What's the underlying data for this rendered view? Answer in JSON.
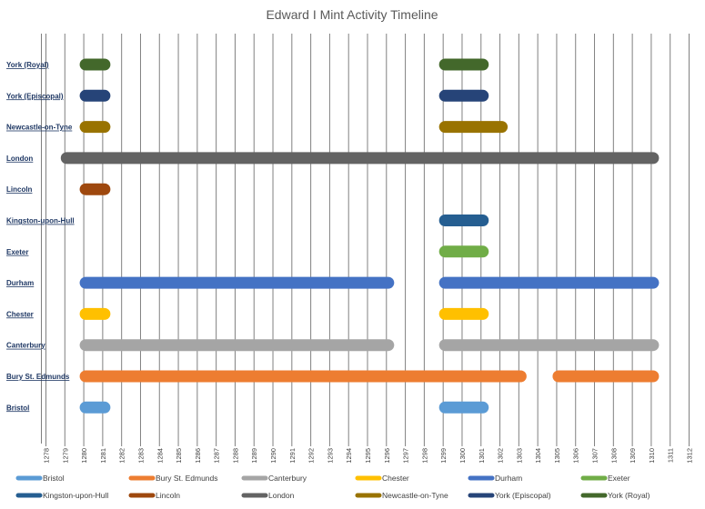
{
  "chart_data": {
    "type": "bar",
    "subtype": "timeline-gantt",
    "title": "Edward I Mint Activity Timeline",
    "xlabel": "",
    "ylabel": "",
    "xlim": [
      1278,
      1312
    ],
    "x_ticks": [
      "1278",
      "1279",
      "1280",
      "1281",
      "1282",
      "1283",
      "1284",
      "1285",
      "1286",
      "1287",
      "1288",
      "1289",
      "1290",
      "1291",
      "1292",
      "1293",
      "1294",
      "1295",
      "1296",
      "1297",
      "1298",
      "1299",
      "1300",
      "1301",
      "1302",
      "1303",
      "1304",
      "1305",
      "1306",
      "1307",
      "1308",
      "1309",
      "1310",
      "1311",
      "1312"
    ],
    "grid": "vertical",
    "legend_position": "bottom",
    "categories": [
      "York (Royal)",
      "York (Episcopal)",
      "Newcastle-on-Tyne",
      "London",
      "Lincoln",
      "Kingston-upon-Hull",
      "Exeter",
      "Durham",
      "Chester",
      "Canterbury",
      "Bury St. Edmunds",
      "Bristol"
    ],
    "series": [
      {
        "name": "Bristol",
        "color": "#5b9bd5",
        "row": 11,
        "intervals": [
          [
            1280,
            1281
          ],
          [
            1299,
            1301
          ]
        ]
      },
      {
        "name": "Bury St. Edmunds",
        "color": "#ed7d31",
        "row": 10,
        "intervals": [
          [
            1280,
            1303
          ],
          [
            1305,
            1310
          ]
        ]
      },
      {
        "name": "Canterbury",
        "color": "#a5a5a5",
        "row": 9,
        "intervals": [
          [
            1280,
            1296
          ],
          [
            1299,
            1310
          ]
        ]
      },
      {
        "name": "Chester",
        "color": "#ffc000",
        "row": 8,
        "intervals": [
          [
            1280,
            1281
          ],
          [
            1299,
            1301
          ]
        ]
      },
      {
        "name": "Durham",
        "color": "#4472c4",
        "row": 7,
        "intervals": [
          [
            1280,
            1296
          ],
          [
            1299,
            1310
          ]
        ]
      },
      {
        "name": "Exeter",
        "color": "#70ad47",
        "row": 6,
        "intervals": [
          [
            1299,
            1301
          ]
        ]
      },
      {
        "name": "Kingston-upon-Hull",
        "color": "#255e91",
        "row": 5,
        "intervals": [
          [
            1299,
            1301
          ]
        ]
      },
      {
        "name": "Lincoln",
        "color": "#9e480e",
        "row": 4,
        "intervals": [
          [
            1280,
            1281
          ]
        ]
      },
      {
        "name": "London",
        "color": "#636363",
        "row": 3,
        "intervals": [
          [
            1279,
            1310
          ]
        ]
      },
      {
        "name": "Newcastle-on-Tyne",
        "color": "#997300",
        "row": 2,
        "intervals": [
          [
            1280,
            1281
          ],
          [
            1299,
            1302
          ]
        ]
      },
      {
        "name": "York (Episcopal)",
        "color": "#264478",
        "row": 1,
        "intervals": [
          [
            1280,
            1281
          ],
          [
            1299,
            1301
          ]
        ]
      },
      {
        "name": "York (Royal)",
        "color": "#43682b",
        "row": 0,
        "intervals": [
          [
            1280,
            1281
          ],
          [
            1299,
            1301
          ]
        ]
      }
    ]
  }
}
